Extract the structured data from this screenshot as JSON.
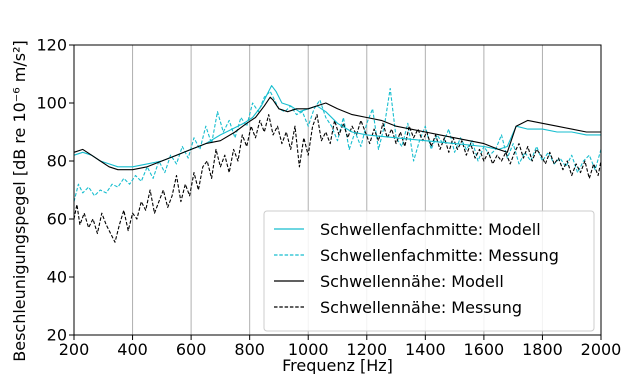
{
  "chart_data": {
    "type": "line",
    "xlabel": "Frequenz [Hz]",
    "ylabel": "Beschleunigungspegel [dB re 10⁻⁶ m/s²]",
    "xlim": [
      200,
      2000
    ],
    "ylim": [
      20,
      120
    ],
    "x_ticks": [
      "200",
      "400",
      "600",
      "800",
      "1000",
      "1200",
      "1400",
      "1600",
      "1800",
      "2000"
    ],
    "y_ticks": [
      "20",
      "40",
      "60",
      "80",
      "100",
      "120"
    ],
    "grid": "vertical",
    "legend_position": "lower-right",
    "series": [
      {
        "name": "Schwellenfachmitte: Modell",
        "color": "#17becf",
        "dash": "solid",
        "points": [
          [
            200,
            82
          ],
          [
            230,
            83
          ],
          [
            260,
            82
          ],
          [
            290,
            80
          ],
          [
            320,
            79
          ],
          [
            350,
            78
          ],
          [
            400,
            78
          ],
          [
            450,
            79
          ],
          [
            500,
            80
          ],
          [
            550,
            82
          ],
          [
            600,
            84
          ],
          [
            650,
            86
          ],
          [
            700,
            89
          ],
          [
            740,
            91
          ],
          [
            780,
            93
          ],
          [
            810,
            95
          ],
          [
            840,
            99
          ],
          [
            860,
            103
          ],
          [
            875,
            106
          ],
          [
            890,
            104
          ],
          [
            910,
            100
          ],
          [
            940,
            99
          ],
          [
            970,
            97
          ],
          [
            1000,
            98
          ],
          [
            1030,
            99
          ],
          [
            1060,
            97
          ],
          [
            1100,
            93
          ],
          [
            1150,
            90
          ],
          [
            1200,
            89
          ],
          [
            1300,
            88
          ],
          [
            1400,
            87
          ],
          [
            1500,
            86
          ],
          [
            1600,
            85
          ],
          [
            1650,
            84
          ],
          [
            1680,
            85
          ],
          [
            1710,
            92
          ],
          [
            1750,
            91
          ],
          [
            1800,
            91
          ],
          [
            1850,
            90
          ],
          [
            1900,
            90
          ],
          [
            1950,
            89
          ],
          [
            2000,
            89
          ]
        ]
      },
      {
        "name": "Schwellenfachmitte: Messung",
        "color": "#17becf",
        "dash": "dashed",
        "points": [
          [
            200,
            66
          ],
          [
            215,
            72
          ],
          [
            230,
            69
          ],
          [
            250,
            71
          ],
          [
            270,
            68
          ],
          [
            290,
            70
          ],
          [
            310,
            69
          ],
          [
            330,
            72
          ],
          [
            350,
            71
          ],
          [
            370,
            74
          ],
          [
            390,
            72
          ],
          [
            410,
            75
          ],
          [
            430,
            73
          ],
          [
            450,
            78
          ],
          [
            470,
            74
          ],
          [
            490,
            80
          ],
          [
            510,
            76
          ],
          [
            530,
            82
          ],
          [
            550,
            79
          ],
          [
            570,
            85
          ],
          [
            590,
            81
          ],
          [
            610,
            88
          ],
          [
            630,
            84
          ],
          [
            650,
            92
          ],
          [
            670,
            86
          ],
          [
            690,
            97
          ],
          [
            710,
            90
          ],
          [
            730,
            94
          ],
          [
            750,
            88
          ],
          [
            770,
            95
          ],
          [
            790,
            92
          ],
          [
            810,
            100
          ],
          [
            830,
            97
          ],
          [
            850,
            102
          ],
          [
            870,
            104
          ],
          [
            885,
            101
          ],
          [
            900,
            98
          ],
          [
            920,
            97
          ],
          [
            940,
            99
          ],
          [
            960,
            96
          ],
          [
            980,
            97
          ],
          [
            1000,
            92
          ],
          [
            1020,
            98
          ],
          [
            1040,
            101
          ],
          [
            1060,
            95
          ],
          [
            1080,
            92
          ],
          [
            1100,
            87
          ],
          [
            1120,
            95
          ],
          [
            1140,
            84
          ],
          [
            1160,
            90
          ],
          [
            1180,
            85
          ],
          [
            1200,
            93
          ],
          [
            1220,
            98
          ],
          [
            1240,
            84
          ],
          [
            1260,
            92
          ],
          [
            1280,
            105
          ],
          [
            1300,
            88
          ],
          [
            1320,
            85
          ],
          [
            1340,
            93
          ],
          [
            1360,
            80
          ],
          [
            1380,
            87
          ],
          [
            1400,
            92
          ],
          [
            1420,
            84
          ],
          [
            1440,
            89
          ],
          [
            1460,
            86
          ],
          [
            1480,
            91
          ],
          [
            1500,
            83
          ],
          [
            1520,
            88
          ],
          [
            1540,
            84
          ],
          [
            1560,
            87
          ],
          [
            1580,
            80
          ],
          [
            1600,
            85
          ],
          [
            1620,
            82
          ],
          [
            1640,
            84
          ],
          [
            1660,
            89
          ],
          [
            1680,
            81
          ],
          [
            1700,
            86
          ],
          [
            1720,
            79
          ],
          [
            1740,
            83
          ],
          [
            1760,
            80
          ],
          [
            1780,
            85
          ],
          [
            1800,
            80
          ],
          [
            1820,
            83
          ],
          [
            1840,
            79
          ],
          [
            1860,
            81
          ],
          [
            1880,
            78
          ],
          [
            1900,
            82
          ],
          [
            1920,
            76
          ],
          [
            1940,
            80
          ],
          [
            1960,
            82
          ],
          [
            1980,
            77
          ],
          [
            2000,
            84
          ]
        ]
      },
      {
        "name": "Schwellennähe: Modell",
        "color": "#000000",
        "dash": "solid",
        "points": [
          [
            200,
            83
          ],
          [
            230,
            84
          ],
          [
            260,
            82
          ],
          [
            290,
            80
          ],
          [
            320,
            78
          ],
          [
            350,
            77
          ],
          [
            400,
            77
          ],
          [
            450,
            78
          ],
          [
            500,
            80
          ],
          [
            550,
            82
          ],
          [
            600,
            84
          ],
          [
            650,
            86
          ],
          [
            700,
            87
          ],
          [
            750,
            90
          ],
          [
            790,
            93
          ],
          [
            820,
            95
          ],
          [
            850,
            99
          ],
          [
            870,
            102
          ],
          [
            880,
            101
          ],
          [
            900,
            98
          ],
          [
            930,
            97
          ],
          [
            960,
            98
          ],
          [
            1000,
            98
          ],
          [
            1030,
            99
          ],
          [
            1060,
            100
          ],
          [
            1100,
            98
          ],
          [
            1150,
            96
          ],
          [
            1200,
            95
          ],
          [
            1250,
            94
          ],
          [
            1300,
            92
          ],
          [
            1350,
            91
          ],
          [
            1400,
            90
          ],
          [
            1450,
            89
          ],
          [
            1500,
            88
          ],
          [
            1550,
            87
          ],
          [
            1600,
            86
          ],
          [
            1650,
            84
          ],
          [
            1680,
            83
          ],
          [
            1710,
            92
          ],
          [
            1750,
            94
          ],
          [
            1800,
            93
          ],
          [
            1850,
            92
          ],
          [
            1900,
            91
          ],
          [
            1950,
            90
          ],
          [
            2000,
            90
          ]
        ]
      },
      {
        "name": "Schwellennähe: Messung",
        "color": "#000000",
        "dash": "dashed",
        "points": [
          [
            200,
            60
          ],
          [
            210,
            65
          ],
          [
            220,
            58
          ],
          [
            235,
            62
          ],
          [
            250,
            57
          ],
          [
            265,
            60
          ],
          [
            280,
            55
          ],
          [
            295,
            62
          ],
          [
            310,
            58
          ],
          [
            325,
            55
          ],
          [
            340,
            52
          ],
          [
            355,
            58
          ],
          [
            370,
            63
          ],
          [
            385,
            56
          ],
          [
            400,
            62
          ],
          [
            415,
            60
          ],
          [
            430,
            66
          ],
          [
            445,
            63
          ],
          [
            460,
            70
          ],
          [
            475,
            62
          ],
          [
            490,
            66
          ],
          [
            505,
            70
          ],
          [
            520,
            64
          ],
          [
            535,
            68
          ],
          [
            550,
            75
          ],
          [
            565,
            66
          ],
          [
            580,
            72
          ],
          [
            595,
            68
          ],
          [
            610,
            76
          ],
          [
            625,
            70
          ],
          [
            640,
            78
          ],
          [
            655,
            80
          ],
          [
            670,
            74
          ],
          [
            685,
            84
          ],
          [
            700,
            78
          ],
          [
            715,
            82
          ],
          [
            730,
            76
          ],
          [
            745,
            84
          ],
          [
            760,
            80
          ],
          [
            775,
            89
          ],
          [
            790,
            85
          ],
          [
            805,
            92
          ],
          [
            820,
            88
          ],
          [
            835,
            94
          ],
          [
            850,
            90
          ],
          [
            865,
            96
          ],
          [
            880,
            89
          ],
          [
            895,
            92
          ],
          [
            910,
            86
          ],
          [
            925,
            90
          ],
          [
            940,
            84
          ],
          [
            955,
            92
          ],
          [
            970,
            78
          ],
          [
            985,
            88
          ],
          [
            1000,
            82
          ],
          [
            1015,
            92
          ],
          [
            1030,
            96
          ],
          [
            1045,
            87
          ],
          [
            1060,
            90
          ],
          [
            1075,
            86
          ],
          [
            1090,
            94
          ],
          [
            1105,
            89
          ],
          [
            1120,
            93
          ],
          [
            1135,
            88
          ],
          [
            1150,
            92
          ],
          [
            1165,
            89
          ],
          [
            1180,
            94
          ],
          [
            1195,
            90
          ],
          [
            1210,
            86
          ],
          [
            1225,
            91
          ],
          [
            1240,
            87
          ],
          [
            1255,
            93
          ],
          [
            1270,
            88
          ],
          [
            1285,
            91
          ],
          [
            1300,
            86
          ],
          [
            1315,
            90
          ],
          [
            1330,
            85
          ],
          [
            1345,
            92
          ],
          [
            1360,
            88
          ],
          [
            1375,
            91
          ],
          [
            1390,
            87
          ],
          [
            1405,
            90
          ],
          [
            1420,
            85
          ],
          [
            1435,
            89
          ],
          [
            1450,
            84
          ],
          [
            1465,
            88
          ],
          [
            1480,
            83
          ],
          [
            1495,
            88
          ],
          [
            1510,
            84
          ],
          [
            1525,
            87
          ],
          [
            1540,
            82
          ],
          [
            1555,
            86
          ],
          [
            1570,
            81
          ],
          [
            1585,
            84
          ],
          [
            1600,
            80
          ],
          [
            1615,
            83
          ],
          [
            1630,
            79
          ],
          [
            1645,
            82
          ],
          [
            1660,
            80
          ],
          [
            1675,
            83
          ],
          [
            1690,
            79
          ],
          [
            1705,
            83
          ],
          [
            1720,
            86
          ],
          [
            1735,
            81
          ],
          [
            1750,
            85
          ],
          [
            1765,
            80
          ],
          [
            1780,
            84
          ],
          [
            1795,
            82
          ],
          [
            1810,
            79
          ],
          [
            1825,
            83
          ],
          [
            1840,
            79
          ],
          [
            1855,
            81
          ],
          [
            1870,
            77
          ],
          [
            1885,
            80
          ],
          [
            1900,
            75
          ],
          [
            1915,
            79
          ],
          [
            1930,
            76
          ],
          [
            1945,
            80
          ],
          [
            1960,
            74
          ],
          [
            1975,
            79
          ],
          [
            1990,
            75
          ],
          [
            2000,
            80
          ]
        ]
      }
    ]
  }
}
